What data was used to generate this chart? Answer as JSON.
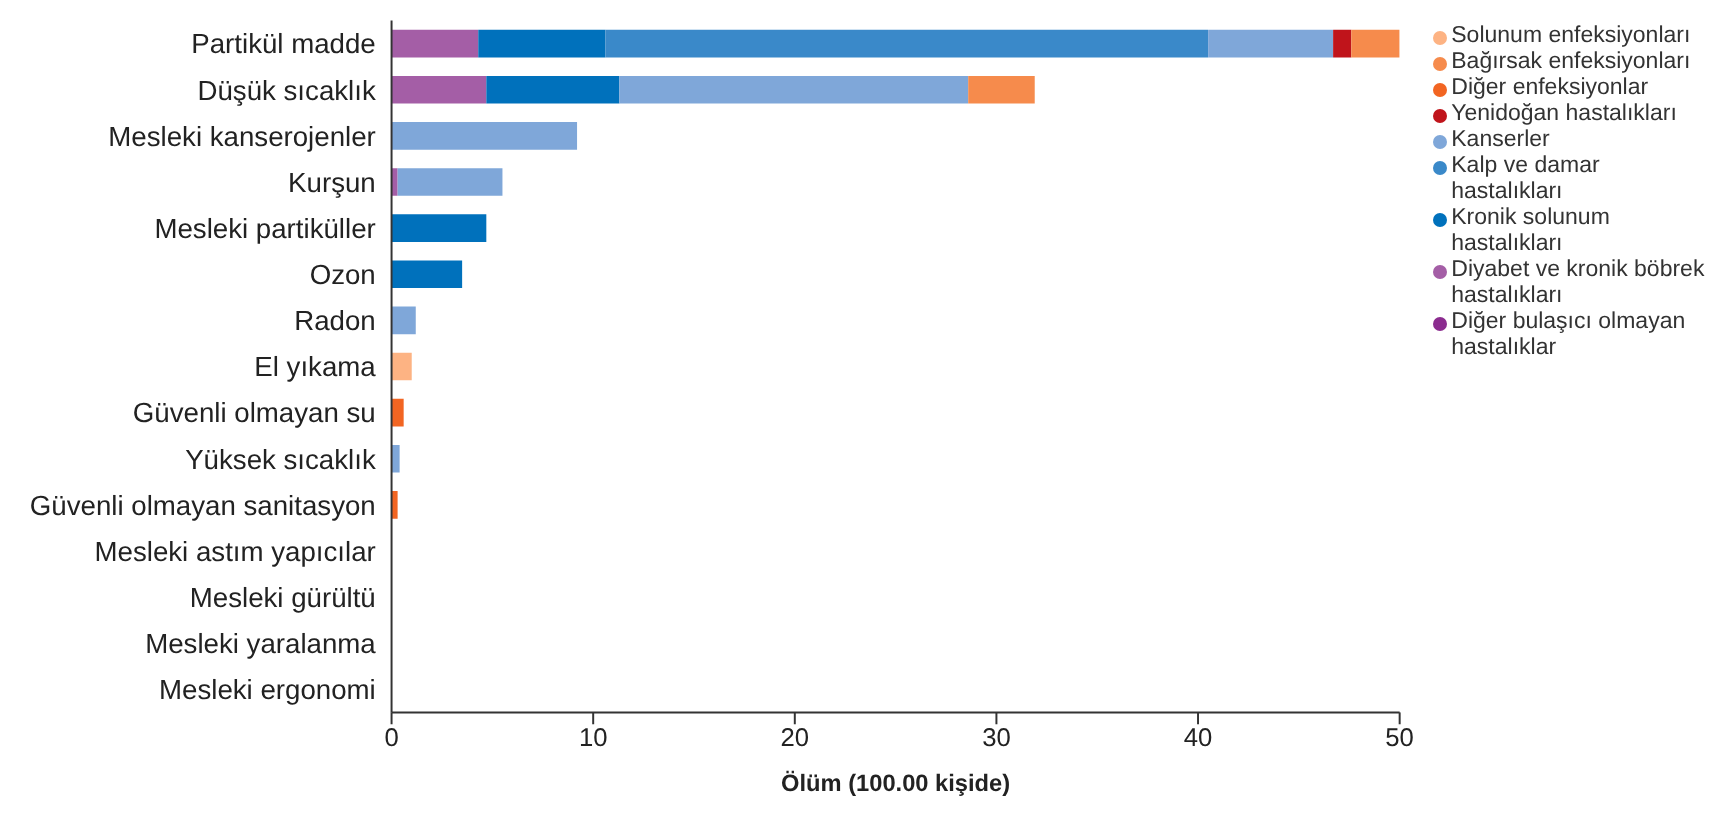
{
  "chart_data": {
    "type": "bar",
    "orientation": "horizontal",
    "stacked": true,
    "xlabel": "Ölüm (100.00 kişide)",
    "categories": [
      "Partikül madde",
      "Düşük sıcaklık",
      "Mesleki kanserojenler",
      "Kurşun",
      "Mesleki partiküller",
      "Ozon",
      "Radon",
      "El yıkama",
      "Güvenli olmayan su",
      "Yüksek sıcaklık",
      "Güvenli olmayan sanitasyon",
      "Mesleki astım yapıcılar",
      "Mesleki gürültü",
      "Mesleki yaralanma",
      "Mesleki ergonomi"
    ],
    "series": [
      {
        "name": "Diğer bulaşıcı olmayan hastalıklar",
        "color": "#8b2c8f",
        "values": [
          null,
          null,
          null,
          null,
          null,
          null,
          null,
          null,
          null,
          null,
          null,
          null,
          null,
          null,
          null
        ]
      },
      {
        "name": "Diyabet ve kronik böbrek hastalıkları",
        "color": "#a45ea6",
        "values": [
          4.3,
          4.7,
          null,
          0.3,
          null,
          null,
          null,
          null,
          null,
          null,
          null,
          null,
          null,
          null,
          null
        ]
      },
      {
        "name": "Kronik solunum hastalıkları",
        "color": "#0071bc",
        "values": [
          6.3,
          6.6,
          null,
          null,
          4.7,
          3.5,
          null,
          null,
          null,
          null,
          null,
          null,
          null,
          null,
          null
        ]
      },
      {
        "name": "Kalp ve damar hastalıkları",
        "color": "#3a89c9",
        "values": [
          29.9,
          null,
          null,
          null,
          null,
          null,
          null,
          null,
          null,
          null,
          null,
          null,
          null,
          null,
          null
        ]
      },
      {
        "name": "Kanserler",
        "color": "#7fa7d9",
        "values": [
          6.2,
          17.3,
          9.2,
          5.2,
          null,
          null,
          1.2,
          null,
          null,
          0.4,
          null,
          null,
          null,
          null,
          null
        ]
      },
      {
        "name": "Yenidoğan hastalıkları",
        "color": "#c0141b",
        "values": [
          0.9,
          null,
          null,
          null,
          null,
          null,
          null,
          null,
          null,
          null,
          null,
          null,
          null,
          null,
          null
        ]
      },
      {
        "name": "Diğer  enfeksiyonlar",
        "color": "#f26522",
        "values": [
          null,
          null,
          null,
          null,
          null,
          null,
          null,
          null,
          0.6,
          null,
          0.3,
          null,
          null,
          null,
          null
        ]
      },
      {
        "name": "Bağırsak enfeksiyonları",
        "color": "#f68b4c",
        "values": [
          2.5,
          3.3,
          null,
          null,
          null,
          null,
          null,
          null,
          null,
          null,
          null,
          null,
          null,
          null,
          null
        ]
      },
      {
        "name": "Solunum enfeksiyonları",
        "color": "#fdb383",
        "values": [
          null,
          null,
          null,
          null,
          null,
          null,
          null,
          1.0,
          null,
          null,
          null,
          null,
          null,
          null,
          null
        ]
      }
    ],
    "xlim": [
      0,
      50
    ],
    "xticks": [
      0,
      10,
      20,
      30,
      40,
      50
    ],
    "grid": false,
    "legend": "right"
  }
}
